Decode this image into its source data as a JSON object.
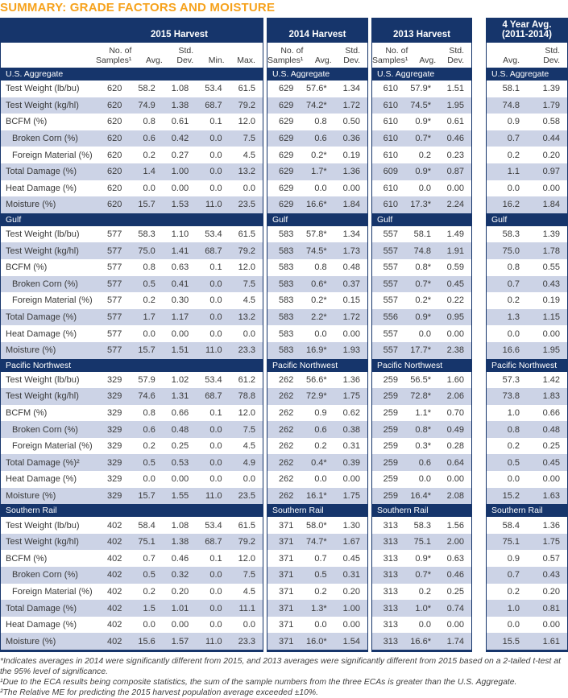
{
  "title": "SUMMARY: GRADE FACTORS AND MOISTURE",
  "colors": {
    "header_navy": "#16356b",
    "row_alt_blue": "#ccd3e6",
    "title_orange": "#f6a21c",
    "body_text": "#3a3a3a"
  },
  "panels": [
    {
      "id": "2015",
      "title_lines": [
        "2015 Harvest"
      ],
      "has_labels": true,
      "columns": [
        {
          "l1": "No. of",
          "l2": "Samples¹"
        },
        {
          "l1": "",
          "l2": "Avg."
        },
        {
          "l1": "Std.",
          "l2": "Dev."
        },
        {
          "l1": "",
          "l2": "Min."
        },
        {
          "l1": "",
          "l2": "Max."
        }
      ]
    },
    {
      "id": "2014",
      "title_lines": [
        "2014 Harvest"
      ],
      "has_labels": false,
      "columns": [
        {
          "l1": "No. of",
          "l2": "Samples¹"
        },
        {
          "l1": "",
          "l2": "Avg."
        },
        {
          "l1": "Std.",
          "l2": "Dev."
        }
      ]
    },
    {
      "id": "2013",
      "title_lines": [
        "2013 Harvest"
      ],
      "has_labels": false,
      "columns": [
        {
          "l1": "No. of",
          "l2": "Samples¹"
        },
        {
          "l1": "",
          "l2": "Avg."
        },
        {
          "l1": "Std.",
          "l2": "Dev."
        }
      ]
    },
    {
      "id": "4yr",
      "title_lines": [
        "4 Year Avg.",
        "(2011-2014)"
      ],
      "has_labels": false,
      "columns": [
        {
          "l1": "",
          "l2": "Avg."
        },
        {
          "l1": "Std.",
          "l2": "Dev."
        }
      ]
    }
  ],
  "sections": [
    {
      "name": "U.S. Aggregate",
      "rows": [
        {
          "label": "Test Weight (lb/bu)",
          "indent": false,
          "p2015": [
            "620",
            "58.2",
            "1.08",
            "53.4",
            "61.5"
          ],
          "p2014": [
            "629",
            "57.6*",
            "1.34"
          ],
          "p2013": [
            "610",
            "57.9*",
            "1.51"
          ],
          "p4yr": [
            "58.1",
            "1.39"
          ]
        },
        {
          "label": "Test Weight (kg/hl)",
          "indent": false,
          "p2015": [
            "620",
            "74.9",
            "1.38",
            "68.7",
            "79.2"
          ],
          "p2014": [
            "629",
            "74.2*",
            "1.72"
          ],
          "p2013": [
            "610",
            "74.5*",
            "1.95"
          ],
          "p4yr": [
            "74.8",
            "1.79"
          ]
        },
        {
          "label": "BCFM (%)",
          "indent": false,
          "p2015": [
            "620",
            "0.8",
            "0.61",
            "0.1",
            "12.0"
          ],
          "p2014": [
            "629",
            "0.8",
            "0.50"
          ],
          "p2013": [
            "610",
            "0.9*",
            "0.61"
          ],
          "p4yr": [
            "0.9",
            "0.58"
          ]
        },
        {
          "label": "Broken Corn (%)",
          "indent": true,
          "p2015": [
            "620",
            "0.6",
            "0.42",
            "0.0",
            "7.5"
          ],
          "p2014": [
            "629",
            "0.6",
            "0.36"
          ],
          "p2013": [
            "610",
            "0.7*",
            "0.46"
          ],
          "p4yr": [
            "0.7",
            "0.44"
          ]
        },
        {
          "label": "Foreign Material (%)",
          "indent": true,
          "p2015": [
            "620",
            "0.2",
            "0.27",
            "0.0",
            "4.5"
          ],
          "p2014": [
            "629",
            "0.2*",
            "0.19"
          ],
          "p2013": [
            "610",
            "0.2",
            "0.23"
          ],
          "p4yr": [
            "0.2",
            "0.20"
          ]
        },
        {
          "label": "Total Damage (%)",
          "indent": false,
          "p2015": [
            "620",
            "1.4",
            "1.00",
            "0.0",
            "13.2"
          ],
          "p2014": [
            "629",
            "1.7*",
            "1.36"
          ],
          "p2013": [
            "609",
            "0.9*",
            "0.87"
          ],
          "p4yr": [
            "1.1",
            "0.97"
          ]
        },
        {
          "label": "Heat Damage (%)",
          "indent": false,
          "p2015": [
            "620",
            "0.0",
            "0.00",
            "0.0",
            "0.0"
          ],
          "p2014": [
            "629",
            "0.0",
            "0.00"
          ],
          "p2013": [
            "610",
            "0.0",
            "0.00"
          ],
          "p4yr": [
            "0.0",
            "0.00"
          ]
        },
        {
          "label": "Moisture (%)",
          "indent": false,
          "p2015": [
            "620",
            "15.7",
            "1.53",
            "11.0",
            "23.5"
          ],
          "p2014": [
            "629",
            "16.6*",
            "1.84"
          ],
          "p2013": [
            "610",
            "17.3*",
            "2.24"
          ],
          "p4yr": [
            "16.2",
            "1.84"
          ]
        }
      ]
    },
    {
      "name": "Gulf",
      "rows": [
        {
          "label": "Test Weight (lb/bu)",
          "indent": false,
          "p2015": [
            "577",
            "58.3",
            "1.10",
            "53.4",
            "61.5"
          ],
          "p2014": [
            "583",
            "57.8*",
            "1.34"
          ],
          "p2013": [
            "557",
            "58.1",
            "1.49"
          ],
          "p4yr": [
            "58.3",
            "1.39"
          ]
        },
        {
          "label": "Test Weight (kg/hl)",
          "indent": false,
          "p2015": [
            "577",
            "75.0",
            "1.41",
            "68.7",
            "79.2"
          ],
          "p2014": [
            "583",
            "74.5*",
            "1.73"
          ],
          "p2013": [
            "557",
            "74.8",
            "1.91"
          ],
          "p4yr": [
            "75.0",
            "1.78"
          ]
        },
        {
          "label": "BCFM (%)",
          "indent": false,
          "p2015": [
            "577",
            "0.8",
            "0.63",
            "0.1",
            "12.0"
          ],
          "p2014": [
            "583",
            "0.8",
            "0.48"
          ],
          "p2013": [
            "557",
            "0.8*",
            "0.59"
          ],
          "p4yr": [
            "0.8",
            "0.55"
          ]
        },
        {
          "label": "Broken Corn (%)",
          "indent": true,
          "p2015": [
            "577",
            "0.5",
            "0.41",
            "0.0",
            "7.5"
          ],
          "p2014": [
            "583",
            "0.6*",
            "0.37"
          ],
          "p2013": [
            "557",
            "0.7*",
            "0.45"
          ],
          "p4yr": [
            "0.7",
            "0.43"
          ]
        },
        {
          "label": "Foreign Material (%)",
          "indent": true,
          "p2015": [
            "577",
            "0.2",
            "0.30",
            "0.0",
            "4.5"
          ],
          "p2014": [
            "583",
            "0.2*",
            "0.15"
          ],
          "p2013": [
            "557",
            "0.2*",
            "0.22"
          ],
          "p4yr": [
            "0.2",
            "0.19"
          ]
        },
        {
          "label": "Total Damage (%)",
          "indent": false,
          "p2015": [
            "577",
            "1.7",
            "1.17",
            "0.0",
            "13.2"
          ],
          "p2014": [
            "583",
            "2.2*",
            "1.72"
          ],
          "p2013": [
            "556",
            "0.9*",
            "0.95"
          ],
          "p4yr": [
            "1.3",
            "1.15"
          ]
        },
        {
          "label": "Heat Damage (%)",
          "indent": false,
          "p2015": [
            "577",
            "0.0",
            "0.00",
            "0.0",
            "0.0"
          ],
          "p2014": [
            "583",
            "0.0",
            "0.00"
          ],
          "p2013": [
            "557",
            "0.0",
            "0.00"
          ],
          "p4yr": [
            "0.0",
            "0.00"
          ]
        },
        {
          "label": "Moisture (%)",
          "indent": false,
          "p2015": [
            "577",
            "15.7",
            "1.51",
            "11.0",
            "23.3"
          ],
          "p2014": [
            "583",
            "16.9*",
            "1.93"
          ],
          "p2013": [
            "557",
            "17.7*",
            "2.38"
          ],
          "p4yr": [
            "16.6",
            "1.95"
          ]
        }
      ]
    },
    {
      "name": "Pacific Northwest",
      "rows": [
        {
          "label": "Test Weight (lb/bu)",
          "indent": false,
          "p2015": [
            "329",
            "57.9",
            "1.02",
            "53.4",
            "61.2"
          ],
          "p2014": [
            "262",
            "56.6*",
            "1.36"
          ],
          "p2013": [
            "259",
            "56.5*",
            "1.60"
          ],
          "p4yr": [
            "57.3",
            "1.42"
          ]
        },
        {
          "label": "Test Weight (kg/hl)",
          "indent": false,
          "p2015": [
            "329",
            "74.6",
            "1.31",
            "68.7",
            "78.8"
          ],
          "p2014": [
            "262",
            "72.9*",
            "1.75"
          ],
          "p2013": [
            "259",
            "72.8*",
            "2.06"
          ],
          "p4yr": [
            "73.8",
            "1.83"
          ]
        },
        {
          "label": "BCFM (%)",
          "indent": false,
          "p2015": [
            "329",
            "0.8",
            "0.66",
            "0.1",
            "12.0"
          ],
          "p2014": [
            "262",
            "0.9",
            "0.62"
          ],
          "p2013": [
            "259",
            "1.1*",
            "0.70"
          ],
          "p4yr": [
            "1.0",
            "0.66"
          ]
        },
        {
          "label": "Broken Corn (%)",
          "indent": true,
          "p2015": [
            "329",
            "0.6",
            "0.48",
            "0.0",
            "7.5"
          ],
          "p2014": [
            "262",
            "0.6",
            "0.38"
          ],
          "p2013": [
            "259",
            "0.8*",
            "0.49"
          ],
          "p4yr": [
            "0.8",
            "0.48"
          ]
        },
        {
          "label": "Foreign Material (%)",
          "indent": true,
          "p2015": [
            "329",
            "0.2",
            "0.25",
            "0.0",
            "4.5"
          ],
          "p2014": [
            "262",
            "0.2",
            "0.31"
          ],
          "p2013": [
            "259",
            "0.3*",
            "0.28"
          ],
          "p4yr": [
            "0.2",
            "0.25"
          ]
        },
        {
          "label": "Total Damage (%)²",
          "indent": false,
          "p2015": [
            "329",
            "0.5",
            "0.53",
            "0.0",
            "4.9"
          ],
          "p2014": [
            "262",
            "0.4*",
            "0.39"
          ],
          "p2013": [
            "259",
            "0.6",
            "0.64"
          ],
          "p4yr": [
            "0.5",
            "0.45"
          ]
        },
        {
          "label": "Heat Damage (%)",
          "indent": false,
          "p2015": [
            "329",
            "0.0",
            "0.00",
            "0.0",
            "0.0"
          ],
          "p2014": [
            "262",
            "0.0",
            "0.00"
          ],
          "p2013": [
            "259",
            "0.0",
            "0.00"
          ],
          "p4yr": [
            "0.0",
            "0.00"
          ]
        },
        {
          "label": "Moisture (%)",
          "indent": false,
          "p2015": [
            "329",
            "15.7",
            "1.55",
            "11.0",
            "23.5"
          ],
          "p2014": [
            "262",
            "16.1*",
            "1.75"
          ],
          "p2013": [
            "259",
            "16.4*",
            "2.08"
          ],
          "p4yr": [
            "15.2",
            "1.63"
          ]
        }
      ]
    },
    {
      "name": "Southern Rail",
      "rows": [
        {
          "label": "Test Weight (lb/bu)",
          "indent": false,
          "p2015": [
            "402",
            "58.4",
            "1.08",
            "53.4",
            "61.5"
          ],
          "p2014": [
            "371",
            "58.0*",
            "1.30"
          ],
          "p2013": [
            "313",
            "58.3",
            "1.56"
          ],
          "p4yr": [
            "58.4",
            "1.36"
          ]
        },
        {
          "label": "Test Weight (kg/hl)",
          "indent": false,
          "p2015": [
            "402",
            "75.1",
            "1.38",
            "68.7",
            "79.2"
          ],
          "p2014": [
            "371",
            "74.7*",
            "1.67"
          ],
          "p2013": [
            "313",
            "75.1",
            "2.00"
          ],
          "p4yr": [
            "75.1",
            "1.75"
          ]
        },
        {
          "label": "BCFM (%)",
          "indent": false,
          "p2015": [
            "402",
            "0.7",
            "0.46",
            "0.1",
            "12.0"
          ],
          "p2014": [
            "371",
            "0.7",
            "0.45"
          ],
          "p2013": [
            "313",
            "0.9*",
            "0.63"
          ],
          "p4yr": [
            "0.9",
            "0.57"
          ]
        },
        {
          "label": "Broken Corn (%)",
          "indent": true,
          "p2015": [
            "402",
            "0.5",
            "0.32",
            "0.0",
            "7.5"
          ],
          "p2014": [
            "371",
            "0.5",
            "0.31"
          ],
          "p2013": [
            "313",
            "0.7*",
            "0.46"
          ],
          "p4yr": [
            "0.7",
            "0.43"
          ]
        },
        {
          "label": "Foreign Material (%)",
          "indent": true,
          "p2015": [
            "402",
            "0.2",
            "0.20",
            "0.0",
            "4.5"
          ],
          "p2014": [
            "371",
            "0.2",
            "0.20"
          ],
          "p2013": [
            "313",
            "0.2",
            "0.25"
          ],
          "p4yr": [
            "0.2",
            "0.20"
          ]
        },
        {
          "label": "Total Damage (%)",
          "indent": false,
          "p2015": [
            "402",
            "1.5",
            "1.01",
            "0.0",
            "11.1"
          ],
          "p2014": [
            "371",
            "1.3*",
            "1.00"
          ],
          "p2013": [
            "313",
            "1.0*",
            "0.74"
          ],
          "p4yr": [
            "1.0",
            "0.81"
          ]
        },
        {
          "label": "Heat Damage (%)",
          "indent": false,
          "p2015": [
            "402",
            "0.0",
            "0.00",
            "0.0",
            "0.0"
          ],
          "p2014": [
            "371",
            "0.0",
            "0.00"
          ],
          "p2013": [
            "313",
            "0.0",
            "0.00"
          ],
          "p4yr": [
            "0.0",
            "0.00"
          ]
        },
        {
          "label": "Moisture (%)",
          "indent": false,
          "p2015": [
            "402",
            "15.6",
            "1.57",
            "11.0",
            "23.3"
          ],
          "p2014": [
            "371",
            "16.0*",
            "1.54"
          ],
          "p2013": [
            "313",
            "16.6*",
            "1.74"
          ],
          "p4yr": [
            "15.5",
            "1.61"
          ]
        }
      ]
    }
  ],
  "footnotes": [
    "*Indicates averages in 2014 were significantly different from 2015, and 2013 averages were significantly different from 2015 based on a 2-tailed t-test at the 95% level of significance.",
    "¹Due to the ECA results being composite statistics, the sum of the sample numbers from the three ECAs is greater than the U.S. Aggregate.",
    "²The Relative ME for predicting the 2015 harvest population average exceeded ±10%."
  ]
}
